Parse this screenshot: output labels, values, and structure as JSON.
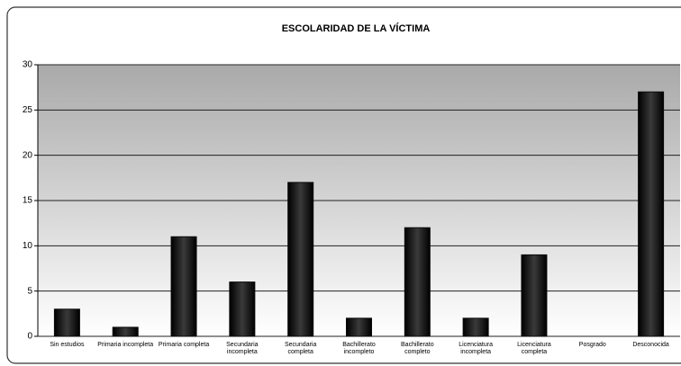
{
  "chart_data": {
    "type": "bar",
    "title": "ESCOLARIDAD DE LA VÍCTIMA",
    "categories": [
      "Sin estudios",
      "Primaria incompleta",
      "Primaria completa",
      "Secundaria incompleta",
      "Secundaria completa",
      "Bachillerato incompleto",
      "Bachillerato completo",
      "Licenciatura incompleta",
      "Licenciatura completa",
      "Posgrado",
      "Desconocida"
    ],
    "values": [
      3,
      1,
      11,
      6,
      17,
      2,
      12,
      2,
      9,
      0,
      27
    ],
    "color": "#0a0a0a",
    "ylim": [
      0,
      30
    ],
    "yticks": [
      0,
      5,
      10,
      15,
      20,
      25,
      30
    ],
    "grid": true
  }
}
